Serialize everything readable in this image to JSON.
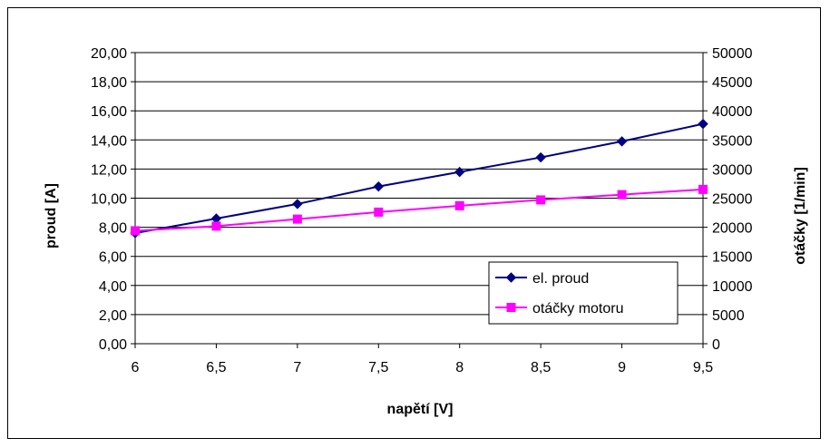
{
  "chart_data": {
    "type": "line",
    "xlabel": "napětí [V]",
    "ylabel": "proud [A]",
    "y2label": "otáčky [1/min]",
    "x": [
      6,
      6.5,
      7,
      7.5,
      8,
      8.5,
      9,
      9.5
    ],
    "x_tick_labels": [
      "6",
      "6,5",
      "7",
      "7,5",
      "8",
      "8,5",
      "9",
      "9,5"
    ],
    "ylim": [
      0,
      20
    ],
    "y_tick_labels": [
      "0,00",
      "2,00",
      "4,00",
      "6,00",
      "8,00",
      "10,00",
      "12,00",
      "14,00",
      "16,00",
      "18,00",
      "20,00"
    ],
    "y2lim": [
      0,
      50000
    ],
    "y2_tick_labels": [
      "0",
      "5000",
      "10000",
      "15000",
      "20000",
      "25000",
      "30000",
      "35000",
      "40000",
      "45000",
      "50000"
    ],
    "grid": "horizontal",
    "legend_position": "bottom-right",
    "series": [
      {
        "name": "el. proud",
        "axis": "left",
        "color": "#000080",
        "marker": "diamond",
        "values": [
          7.6,
          8.6,
          9.6,
          10.8,
          11.8,
          12.8,
          13.9,
          15.1
        ]
      },
      {
        "name": "otáčky motoru",
        "axis": "right",
        "color": "#FF00FF",
        "marker": "square",
        "values": [
          19400,
          20200,
          21400,
          22600,
          23700,
          24700,
          25600,
          26500
        ]
      }
    ]
  }
}
